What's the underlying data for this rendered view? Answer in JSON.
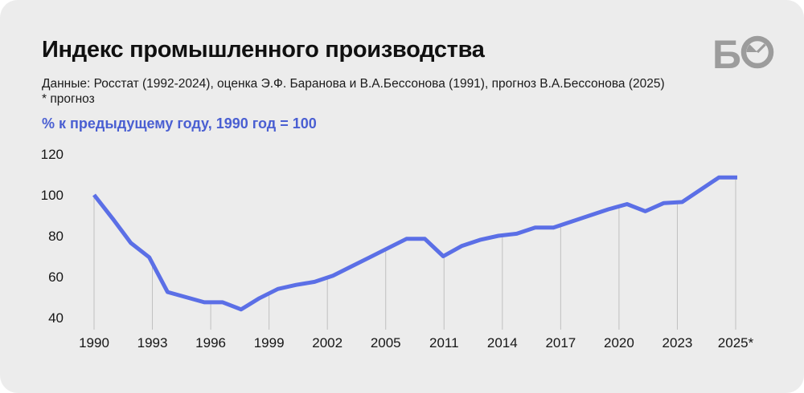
{
  "header": {
    "title": "Индекс промышленного производства",
    "source_line": "Данные: Росстат (1992-2024), оценка Э.Ф. Баранова и В.А.Бессонова (1991), прогноз  В.А.Бессонова (2025)",
    "footnote": "* прогноз",
    "axis_note": "% к предыдущему году, 1990 год = 100",
    "logo_letter": "Б"
  },
  "colors": {
    "card_bg": "#ececec",
    "accent_text_blue": "#4a5fd2",
    "line_blue": "#5b6fe6",
    "gridline_gray": "#c0c0c0",
    "logo_gray": "#9c9c9c",
    "text_dark": "#101010"
  },
  "chart_data": {
    "type": "line",
    "title": "Индекс промышленного производства",
    "unit_note": "% к предыдущему году, 1990 год = 100",
    "x": [
      1990,
      1991,
      1992,
      1993,
      1994,
      1995,
      1996,
      1997,
      1998,
      1999,
      2000,
      2001,
      2002,
      2003,
      2004,
      2005,
      2006,
      2007,
      2008,
      2009,
      2010,
      2011,
      2012,
      2013,
      2014,
      2015,
      2016,
      2017,
      2018,
      2019,
      2020,
      2021,
      2022,
      2023,
      2024,
      2025
    ],
    "values": [
      100,
      88.5,
      76.5,
      69.5,
      52.5,
      50,
      47.5,
      47.5,
      44,
      49.5,
      54,
      56,
      57.5,
      60.5,
      65,
      69.5,
      74,
      78.5,
      78.5,
      70,
      75,
      78,
      80,
      81,
      84,
      84,
      87,
      90,
      93,
      95.5,
      92,
      96,
      96.5,
      102.5,
      108.5,
      108.5
    ],
    "x_tick_labels": [
      "1990",
      "1993",
      "1996",
      "1999",
      "2002",
      "2005",
      "2011",
      "2014",
      "2017",
      "2020",
      "2023",
      "2025*"
    ],
    "y_ticks": [
      40,
      60,
      80,
      100,
      120
    ],
    "ylim": [
      40,
      120
    ],
    "grid": "vertical-only, gridlines run from the data line down to the axis",
    "legend": "none",
    "line_color": "#5b6fe6",
    "last_point_note": "2025 is a forecast (прогноз), marked with * on the axis"
  }
}
